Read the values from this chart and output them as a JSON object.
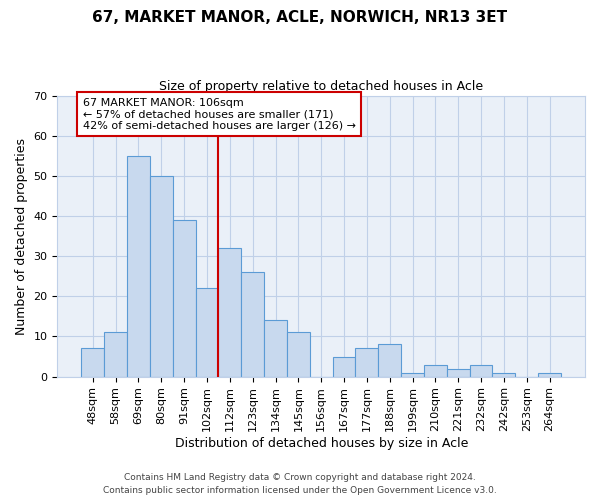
{
  "title": "67, MARKET MANOR, ACLE, NORWICH, NR13 3ET",
  "subtitle": "Size of property relative to detached houses in Acle",
  "xlabel": "Distribution of detached houses by size in Acle",
  "ylabel": "Number of detached properties",
  "bar_labels": [
    "48sqm",
    "58sqm",
    "69sqm",
    "80sqm",
    "91sqm",
    "102sqm",
    "112sqm",
    "123sqm",
    "134sqm",
    "145sqm",
    "156sqm",
    "167sqm",
    "177sqm",
    "188sqm",
    "199sqm",
    "210sqm",
    "221sqm",
    "232sqm",
    "242sqm",
    "253sqm",
    "264sqm"
  ],
  "bar_values": [
    7,
    11,
    55,
    50,
    39,
    22,
    32,
    26,
    14,
    11,
    0,
    5,
    7,
    8,
    1,
    3,
    2,
    3,
    1,
    0,
    1
  ],
  "bar_color": "#c8d9ee",
  "bar_edge_color": "#5b9bd5",
  "ylim": [
    0,
    70
  ],
  "yticks": [
    0,
    10,
    20,
    30,
    40,
    50,
    60,
    70
  ],
  "vline_x": 5.5,
  "vline_color": "#cc0000",
  "annotation_text": "67 MARKET MANOR: 106sqm\n← 57% of detached houses are smaller (171)\n42% of semi-detached houses are larger (126) →",
  "annotation_box_color": "#ffffff",
  "annotation_box_edge": "#cc0000",
  "footer1": "Contains HM Land Registry data © Crown copyright and database right 2024.",
  "footer2": "Contains public sector information licensed under the Open Government Licence v3.0.",
  "background_color": "#ffffff",
  "plot_bg_color": "#eaf0f8",
  "grid_color": "#c0d0e8",
  "title_fontsize": 11,
  "subtitle_fontsize": 9,
  "ylabel_fontsize": 9,
  "xlabel_fontsize": 9,
  "tick_fontsize": 8,
  "annotation_fontsize": 8,
  "footer_fontsize": 6.5
}
